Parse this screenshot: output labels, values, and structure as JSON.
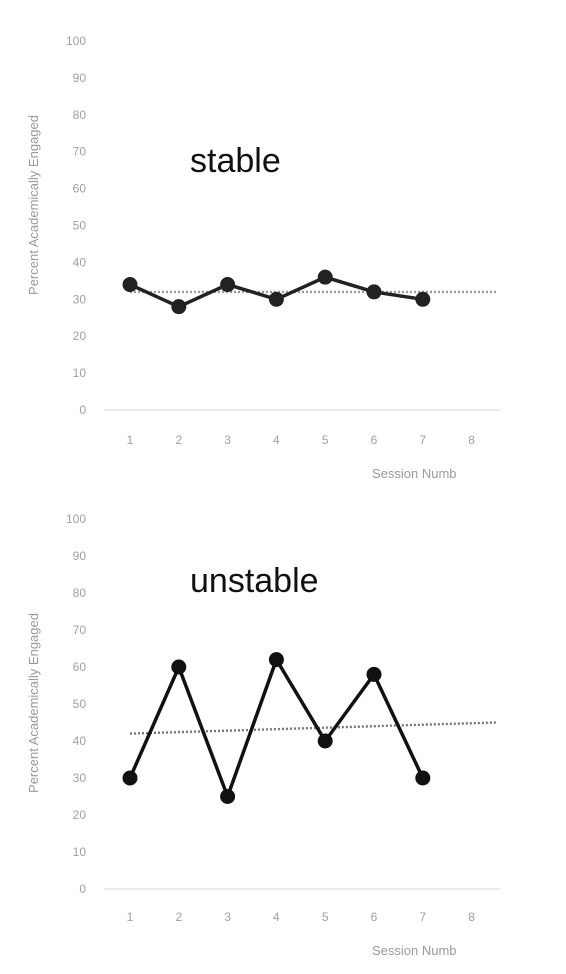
{
  "chart_data": [
    {
      "type": "line",
      "annotation": "stable",
      "x": [
        1,
        2,
        3,
        4,
        5,
        6,
        7
      ],
      "values": [
        34,
        28,
        34,
        30,
        36,
        32,
        30
      ],
      "trend": {
        "x": [
          1,
          8.5
        ],
        "y": [
          32,
          32
        ]
      },
      "xticks": [
        "1",
        "2",
        "3",
        "4",
        "5",
        "6",
        "7",
        "8"
      ],
      "yticks": [
        "0",
        "10",
        "20",
        "30",
        "40",
        "50",
        "60",
        "70",
        "80",
        "90",
        "100"
      ],
      "xlabel": "Session Numb",
      "ylabel": "Percent Academically Engaged",
      "ylim": [
        0,
        100
      ],
      "grid": false,
      "line_color": "#222222",
      "trend_color": "#999999"
    },
    {
      "type": "line",
      "annotation": "unstable",
      "x": [
        1,
        2,
        3,
        4,
        5,
        6,
        7
      ],
      "values": [
        30,
        60,
        25,
        62,
        40,
        58,
        30
      ],
      "trend": {
        "x": [
          1,
          8.5
        ],
        "y": [
          42,
          45
        ]
      },
      "xticks": [
        "1",
        "2",
        "3",
        "4",
        "5",
        "6",
        "7",
        "8"
      ],
      "yticks": [
        "0",
        "10",
        "20",
        "30",
        "40",
        "50",
        "60",
        "70",
        "80",
        "90",
        "100"
      ],
      "xlabel": "Session Numb",
      "ylabel": "Percent Academically Engaged",
      "ylim": [
        0,
        100
      ],
      "grid": false,
      "line_color": "#111111",
      "trend_color": "#777777"
    }
  ]
}
